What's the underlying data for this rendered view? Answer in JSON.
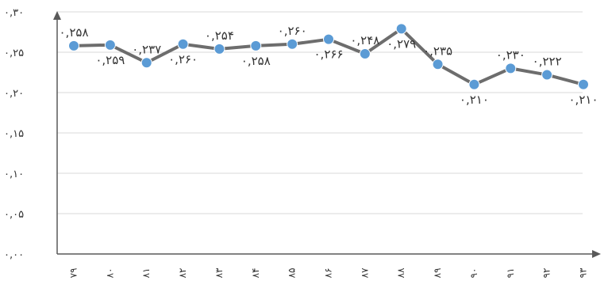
{
  "chart_data": {
    "type": "line",
    "categories": [
      "۷۹",
      "۸۰",
      "۸۱",
      "۸۲",
      "۸۳",
      "۸۴",
      "۸۵",
      "۸۶",
      "۸۷",
      "۸۸",
      "۸۹",
      "۹۰",
      "۹۱",
      "۹۲",
      "۹۳"
    ],
    "values": [
      0.258,
      0.259,
      0.237,
      0.26,
      0.254,
      0.258,
      0.26,
      0.266,
      0.248,
      0.279,
      0.235,
      0.21,
      0.23,
      0.222,
      0.21
    ],
    "data_labels": [
      "۰,۲۵۸",
      "۰,۲۵۹",
      "۰,۲۳۷",
      "۰,۲۶۰",
      "۰,۲۵۴",
      "۰,۲۵۸",
      "۰,۲۶۰",
      "۰,۲۶۶",
      "۰,۲۴۸",
      "۰,۲۷۹",
      "۰,۲۳۵",
      "۰,۲۱۰",
      "۰,۲۳۰",
      "۰,۲۲۲",
      "۰,۲۱۰"
    ],
    "label_positions": [
      "above",
      "below",
      "above",
      "below",
      "above",
      "below",
      "above",
      "below",
      "above",
      "below",
      "above",
      "below",
      "above",
      "above",
      "below"
    ],
    "y_ticks": [
      0,
      0.05,
      0.1,
      0.15,
      0.2,
      0.25,
      0.3
    ],
    "y_tick_labels": [
      "۰,۰۰",
      "۰,۰۵",
      "۰,۱۰",
      "۰,۱۵",
      "۰,۲۰",
      "۰,۲۵",
      "۰,۳۰"
    ],
    "ylim": [
      0,
      0.3
    ],
    "title": "",
    "xlabel": "",
    "ylabel": "",
    "grid": true,
    "legend": "none",
    "colors": {
      "line": "#6d6d6d",
      "marker": "#5b9bd5",
      "grid": "#d9d9d9",
      "axis": "#595959",
      "text": "#333333"
    }
  }
}
